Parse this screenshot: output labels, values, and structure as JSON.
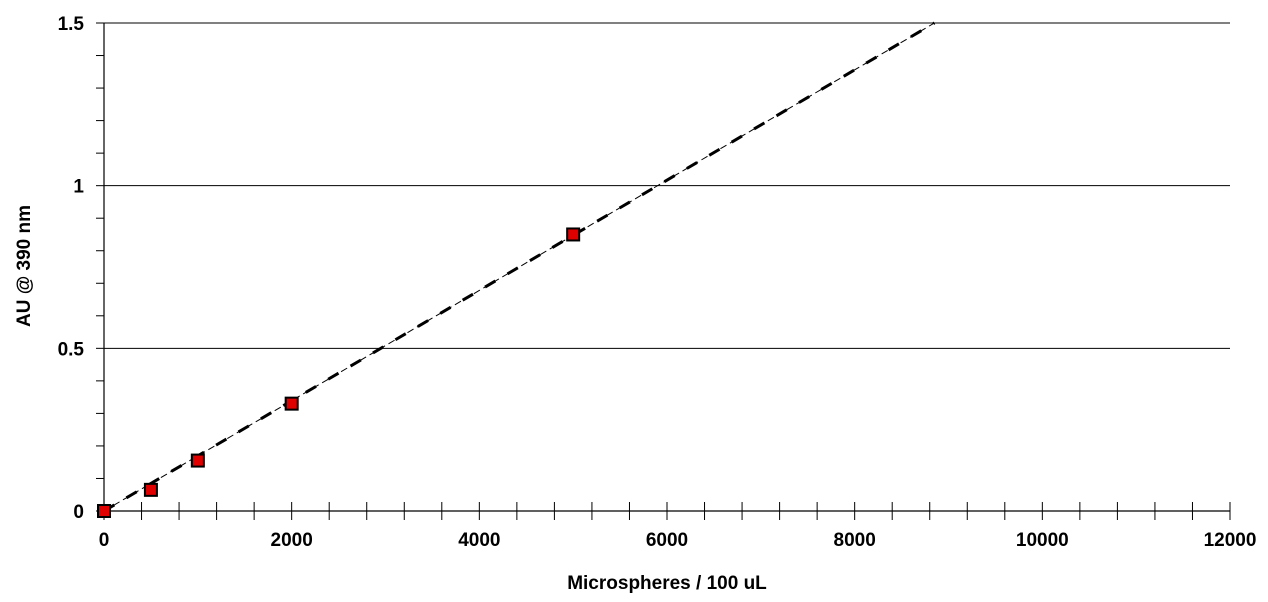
{
  "chart_data": {
    "type": "scatter",
    "title": "",
    "xlabel": "Microspheres / 100 uL",
    "ylabel": "AU @ 390 nm",
    "xlim": [
      0,
      12000
    ],
    "ylim": [
      0,
      1.5
    ],
    "x_ticks": [
      "0",
      "2000",
      "4000",
      "6000",
      "8000",
      "10000",
      "12000"
    ],
    "y_ticks": [
      "0",
      "0.5",
      "1",
      "1.5"
    ],
    "x_minor_step": 400,
    "y_minor_step": 0.1,
    "grid": {
      "horizontal_major": true,
      "vertical": false
    },
    "series": [
      {
        "marker": "square",
        "fill_color": "#e00000",
        "edge_color": "#000000",
        "points": [
          {
            "x": 0,
            "y": 0
          },
          {
            "x": 500,
            "y": 0.065
          },
          {
            "x": 1000,
            "y": 0.155
          },
          {
            "x": 2000,
            "y": 0.33
          },
          {
            "x": 5000,
            "y": 0.85
          }
        ]
      }
    ],
    "trendline": {
      "style": "dashed",
      "color": "#000000",
      "x_range": [
        0,
        8850
      ],
      "slope": 0.0001695,
      "intercept": 0
    }
  }
}
